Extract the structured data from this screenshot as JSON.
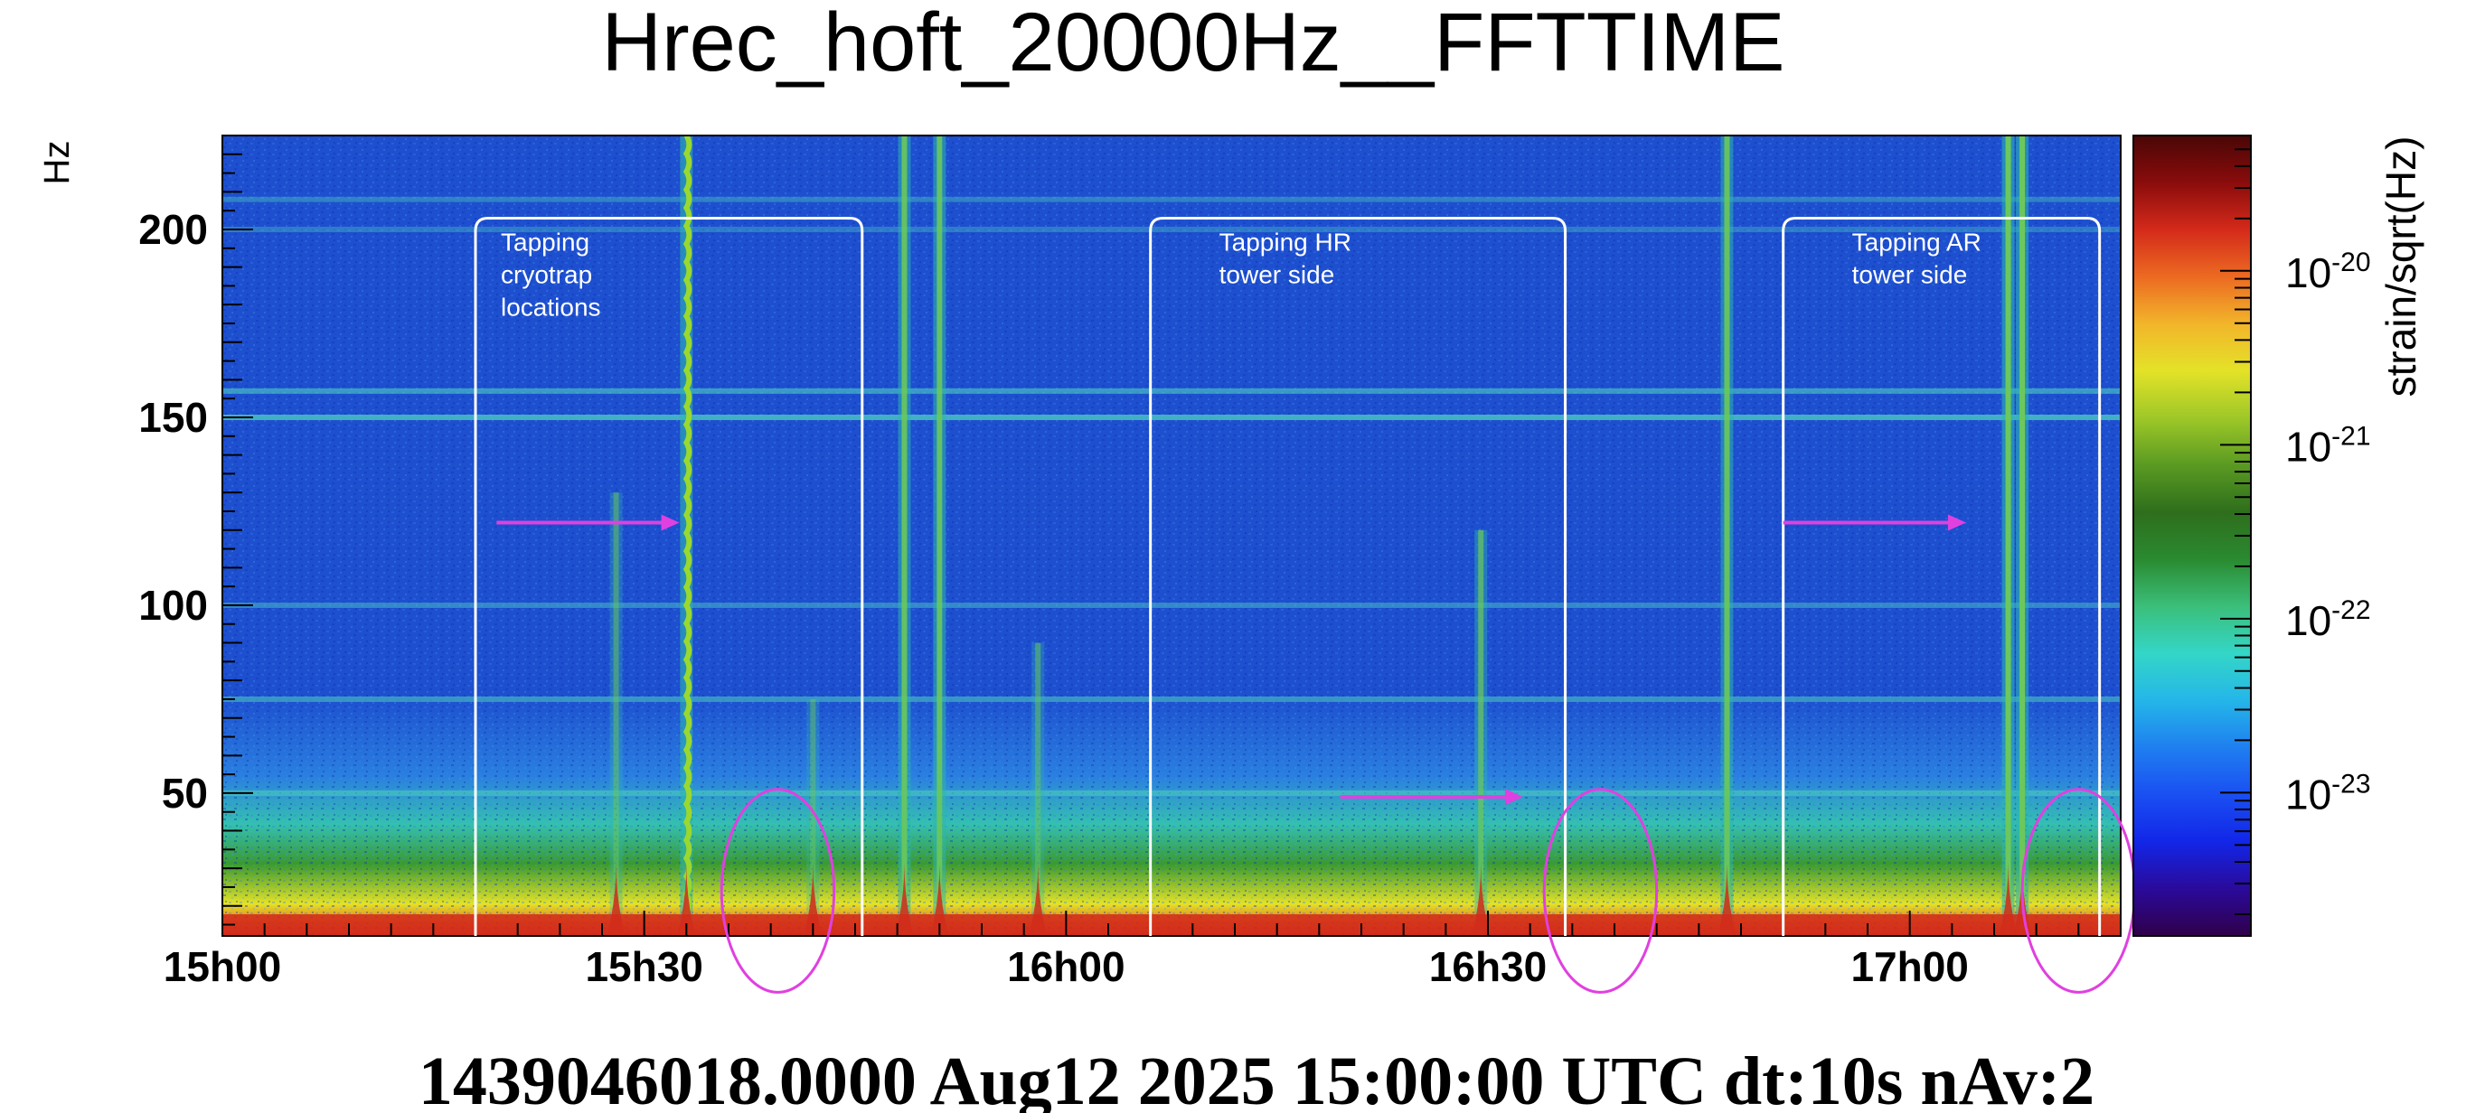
{
  "chart_data": {
    "type": "heatmap",
    "title": "Hrec_hoft_20000Hz__FFTTIME",
    "footer": "1439046018.0000 Aug12 2025 15:00:00 UTC dt:10s nAv:2",
    "ylabel": "Hz",
    "colorbar_label": "strain/sqrt(Hz)",
    "x_range_minutes": [
      0,
      135
    ],
    "ylim": [
      12,
      225
    ],
    "x_ticks": [
      {
        "label": "15h00",
        "minute": 0
      },
      {
        "label": "15h30",
        "minute": 30
      },
      {
        "label": "16h00",
        "minute": 60
      },
      {
        "label": "16h30",
        "minute": 90
      },
      {
        "label": "17h00",
        "minute": 120
      }
    ],
    "y_ticks": [
      50,
      100,
      150,
      200
    ],
    "colorbar_ticks": [
      {
        "base": "10",
        "exp": "-20",
        "value": 1e-20
      },
      {
        "base": "10",
        "exp": "-21",
        "value": 1e-21
      },
      {
        "base": "10",
        "exp": "-22",
        "value": 1e-22
      },
      {
        "base": "10",
        "exp": "-23",
        "value": 1e-23
      }
    ],
    "colorbar_range": [
      1.5e-24,
      6e-20
    ],
    "colormap": [
      "#30004a",
      "#2a0a9a",
      "#1226e8",
      "#1a4ff2",
      "#1f7ff0",
      "#24b6e8",
      "#34d6c8",
      "#3bbf7a",
      "#2a8a30",
      "#2e6e1c",
      "#5a9a22",
      "#9ec828",
      "#e4e228",
      "#f2b52a",
      "#ec6a22",
      "#d42a1a",
      "#8a0c0c",
      "#4a0606"
    ],
    "background_level": "#1d4fcf",
    "horizontal_lines_hz": [
      {
        "hz": 208,
        "strength": 0.4
      },
      {
        "hz": 200,
        "strength": 0.35
      },
      {
        "hz": 157,
        "strength": 0.6
      },
      {
        "hz": 150,
        "strength": 0.75
      },
      {
        "hz": 100,
        "strength": 0.45
      },
      {
        "hz": 75,
        "strength": 0.55
      },
      {
        "hz": 50,
        "strength": 0.55
      }
    ],
    "vertical_transients_minute": [
      {
        "minute": 28,
        "max_hz": 130,
        "strength": 0.5
      },
      {
        "minute": 33,
        "max_hz": 225,
        "strength": 1.0,
        "wavy": true
      },
      {
        "minute": 42,
        "max_hz": 75,
        "strength": 0.45
      },
      {
        "minute": 48.5,
        "max_hz": 225,
        "strength": 0.9
      },
      {
        "minute": 51,
        "max_hz": 225,
        "strength": 0.9
      },
      {
        "minute": 58,
        "max_hz": 90,
        "strength": 0.5
      },
      {
        "minute": 89.5,
        "max_hz": 120,
        "strength": 0.7
      },
      {
        "minute": 107,
        "max_hz": 225,
        "strength": 0.9
      },
      {
        "minute": 127,
        "max_hz": 225,
        "strength": 1.0
      },
      {
        "minute": 128,
        "max_hz": 225,
        "strength": 1.0
      }
    ],
    "boxes": [
      {
        "x0": 18,
        "x1": 45.5,
        "y0": 12,
        "y1": 203,
        "text": [
          "Tapping",
          "cryotrap",
          "locations"
        ]
      },
      {
        "x0": 66,
        "x1": 95.5,
        "y0": 12,
        "y1": 203,
        "text": [
          "Tapping  HR",
          "tower side"
        ]
      },
      {
        "x0": 111,
        "x1": 133.5,
        "y0": 12,
        "y1": 203,
        "text": [
          "Tapping AR",
          "tower side"
        ]
      }
    ],
    "arrows": [
      {
        "x0": 19.5,
        "x1": 32.5,
        "hz": 122
      },
      {
        "x0": 79.5,
        "x1": 92.5,
        "hz": 49
      },
      {
        "x0": 111,
        "x1": 124,
        "hz": 122
      }
    ],
    "ellipses": [
      {
        "cx": 39.5,
        "cy_hz": 24,
        "rx_min": 4,
        "ry_hz": 27
      },
      {
        "cx": 98,
        "cy_hz": 24,
        "rx_min": 4,
        "ry_hz": 27
      },
      {
        "cx": 132,
        "cy_hz": 24,
        "rx_min": 4,
        "ry_hz": 27
      }
    ],
    "annotation_color": "#e040e0",
    "box_color": "#ffffff"
  }
}
